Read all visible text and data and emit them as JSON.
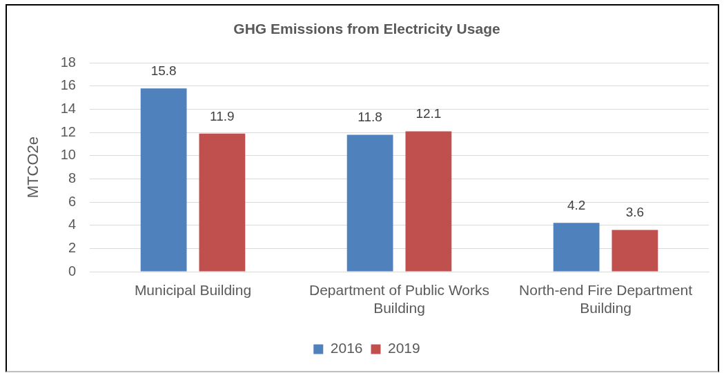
{
  "chart_data": {
    "type": "bar",
    "title": "GHG Emissions from Electricity Usage",
    "ylabel": "MTCO2e",
    "categories": [
      "Municipal Building",
      "Department of Public Works Building",
      "North-end Fire Department Building"
    ],
    "series": [
      {
        "name": "2016",
        "color": "#4f81bd",
        "values": [
          15.8,
          11.8,
          4.2
        ]
      },
      {
        "name": "2019",
        "color": "#c0504d",
        "values": [
          11.9,
          12.1,
          3.6
        ]
      }
    ],
    "ylim": [
      0,
      18
    ],
    "yticks": [
      0,
      2,
      4,
      6,
      8,
      10,
      12,
      14,
      16,
      18
    ],
    "grid": "y",
    "legend": "bottom",
    "data_labels": true
  }
}
